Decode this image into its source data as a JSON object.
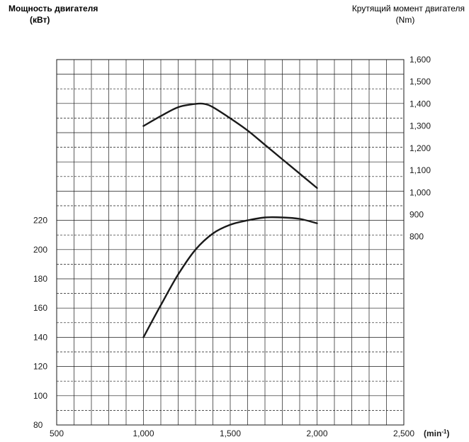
{
  "chart_data": {
    "type": "line",
    "left_axis": {
      "title": "Мощность двигателя",
      "unit": "(кВт)",
      "ticks": [
        "80",
        "100",
        "120",
        "140",
        "160",
        "180",
        "200",
        "220"
      ],
      "range": [
        80,
        330
      ]
    },
    "right_axis": {
      "title": "Крутящий момент двигателя",
      "unit": "(Nm)",
      "ticks": [
        "800",
        "900",
        "1,000",
        "1,100",
        "1,200",
        "1,300",
        "1,400",
        "1,500",
        "1,600"
      ],
      "range": [
        -50,
        1600
      ]
    },
    "x_axis": {
      "ticks": [
        "500",
        "1,000",
        "1,500",
        "2,000",
        "2,500"
      ],
      "unit": "(min",
      "unit_sup": "-1",
      "unit_close": ")",
      "range": [
        500,
        2500
      ]
    },
    "grid": true,
    "series": [
      {
        "axis": "right",
        "color": "#1a1a1a",
        "points": [
          [
            1000,
            1300
          ],
          [
            1100,
            1345
          ],
          [
            1200,
            1385
          ],
          [
            1300,
            1400
          ],
          [
            1350,
            1400
          ],
          [
            1400,
            1385
          ],
          [
            1500,
            1335
          ],
          [
            1600,
            1280
          ],
          [
            1700,
            1215
          ],
          [
            1800,
            1150
          ],
          [
            1900,
            1085
          ],
          [
            2000,
            1020
          ]
        ]
      },
      {
        "axis": "left",
        "color": "#1a1a1a",
        "points": [
          [
            1000,
            140
          ],
          [
            1100,
            162
          ],
          [
            1200,
            183
          ],
          [
            1300,
            200
          ],
          [
            1400,
            211
          ],
          [
            1500,
            217
          ],
          [
            1600,
            220
          ],
          [
            1700,
            222
          ],
          [
            1800,
            222
          ],
          [
            1900,
            221
          ],
          [
            2000,
            218
          ]
        ]
      }
    ]
  }
}
